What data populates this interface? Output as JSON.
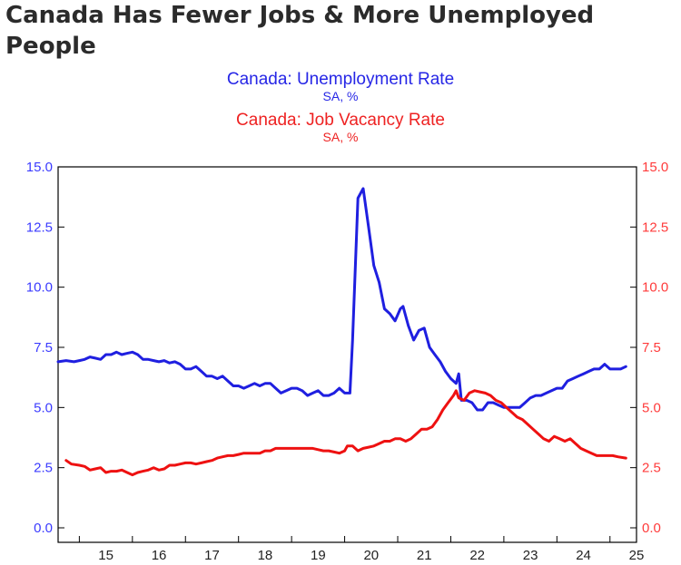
{
  "headline": "Canada Has Fewer Jobs & More Unemployed People",
  "chart_data": {
    "type": "line",
    "title": "",
    "x_tick_labels": [
      "15",
      "16",
      "17",
      "18",
      "19",
      "20",
      "21",
      "22",
      "23",
      "24",
      "25"
    ],
    "x_range": [
      2014.6,
      2025.5
    ],
    "y_left": {
      "range": [
        0,
        15
      ],
      "ticks": [
        "0.0",
        "2.5",
        "5.0",
        "7.5",
        "10.0",
        "12.5",
        "15.0"
      ],
      "color": "#3b3bff"
    },
    "y_right": {
      "range": [
        0,
        15
      ],
      "ticks": [
        "0.0",
        "2.5",
        "5.0",
        "7.5",
        "10.0",
        "12.5",
        "15.0"
      ],
      "color": "#ff3b3b"
    },
    "grid": false,
    "series": [
      {
        "name": "Canada: Unemployment Rate",
        "unit": "SA, %",
        "axis": "left",
        "color": "#1f1fe0",
        "points": [
          [
            2014.6,
            6.9
          ],
          [
            2014.75,
            6.95
          ],
          [
            2014.9,
            6.9
          ],
          [
            2015.0,
            6.95
          ],
          [
            2015.1,
            7.0
          ],
          [
            2015.2,
            7.1
          ],
          [
            2015.3,
            7.05
          ],
          [
            2015.4,
            7.0
          ],
          [
            2015.5,
            7.2
          ],
          [
            2015.6,
            7.2
          ],
          [
            2015.7,
            7.3
          ],
          [
            2015.8,
            7.2
          ],
          [
            2015.9,
            7.25
          ],
          [
            2016.0,
            7.3
          ],
          [
            2016.1,
            7.2
          ],
          [
            2016.2,
            7.0
          ],
          [
            2016.3,
            7.0
          ],
          [
            2016.4,
            6.95
          ],
          [
            2016.5,
            6.9
          ],
          [
            2016.6,
            6.95
          ],
          [
            2016.7,
            6.85
          ],
          [
            2016.8,
            6.9
          ],
          [
            2016.9,
            6.8
          ],
          [
            2017.0,
            6.6
          ],
          [
            2017.1,
            6.6
          ],
          [
            2017.2,
            6.7
          ],
          [
            2017.3,
            6.5
          ],
          [
            2017.4,
            6.3
          ],
          [
            2017.5,
            6.3
          ],
          [
            2017.6,
            6.2
          ],
          [
            2017.7,
            6.3
          ],
          [
            2017.8,
            6.1
          ],
          [
            2017.9,
            5.9
          ],
          [
            2018.0,
            5.9
          ],
          [
            2018.1,
            5.8
          ],
          [
            2018.2,
            5.9
          ],
          [
            2018.3,
            6.0
          ],
          [
            2018.4,
            5.9
          ],
          [
            2018.5,
            6.0
          ],
          [
            2018.6,
            6.0
          ],
          [
            2018.7,
            5.8
          ],
          [
            2018.8,
            5.6
          ],
          [
            2018.9,
            5.7
          ],
          [
            2019.0,
            5.8
          ],
          [
            2019.1,
            5.8
          ],
          [
            2019.2,
            5.7
          ],
          [
            2019.3,
            5.5
          ],
          [
            2019.4,
            5.6
          ],
          [
            2019.5,
            5.7
          ],
          [
            2019.6,
            5.5
          ],
          [
            2019.7,
            5.5
          ],
          [
            2019.8,
            5.6
          ],
          [
            2019.9,
            5.8
          ],
          [
            2020.0,
            5.6
          ],
          [
            2020.1,
            5.6
          ],
          [
            2020.15,
            7.8
          ],
          [
            2020.25,
            13.7
          ],
          [
            2020.35,
            14.1
          ],
          [
            2020.45,
            12.5
          ],
          [
            2020.55,
            10.9
          ],
          [
            2020.65,
            10.2
          ],
          [
            2020.75,
            9.1
          ],
          [
            2020.85,
            8.9
          ],
          [
            2020.95,
            8.6
          ],
          [
            2021.05,
            9.1
          ],
          [
            2021.1,
            9.2
          ],
          [
            2021.2,
            8.4
          ],
          [
            2021.3,
            7.8
          ],
          [
            2021.4,
            8.2
          ],
          [
            2021.5,
            8.3
          ],
          [
            2021.6,
            7.5
          ],
          [
            2021.7,
            7.2
          ],
          [
            2021.8,
            6.9
          ],
          [
            2021.9,
            6.5
          ],
          [
            2022.0,
            6.2
          ],
          [
            2022.1,
            6.0
          ],
          [
            2022.15,
            6.4
          ],
          [
            2022.2,
            5.3
          ],
          [
            2022.3,
            5.3
          ],
          [
            2022.4,
            5.2
          ],
          [
            2022.5,
            4.9
          ],
          [
            2022.6,
            4.9
          ],
          [
            2022.7,
            5.2
          ],
          [
            2022.8,
            5.2
          ],
          [
            2022.9,
            5.1
          ],
          [
            2023.0,
            5.0
          ],
          [
            2023.1,
            5.0
          ],
          [
            2023.2,
            5.0
          ],
          [
            2023.3,
            5.0
          ],
          [
            2023.4,
            5.2
          ],
          [
            2023.5,
            5.4
          ],
          [
            2023.6,
            5.5
          ],
          [
            2023.7,
            5.5
          ],
          [
            2023.8,
            5.6
          ],
          [
            2023.9,
            5.7
          ],
          [
            2024.0,
            5.8
          ],
          [
            2024.1,
            5.8
          ],
          [
            2024.2,
            6.1
          ],
          [
            2024.3,
            6.2
          ],
          [
            2024.4,
            6.3
          ],
          [
            2024.5,
            6.4
          ],
          [
            2024.6,
            6.5
          ],
          [
            2024.7,
            6.6
          ],
          [
            2024.8,
            6.6
          ],
          [
            2024.9,
            6.8
          ],
          [
            2025.0,
            6.6
          ],
          [
            2025.1,
            6.6
          ],
          [
            2025.2,
            6.6
          ],
          [
            2025.3,
            6.7
          ]
        ]
      },
      {
        "name": "Canada: Job Vacancy Rate",
        "unit": "SA, %",
        "axis": "right",
        "color": "#ee1111",
        "points": [
          [
            2014.75,
            2.8
          ],
          [
            2014.85,
            2.65
          ],
          [
            2015.0,
            2.6
          ],
          [
            2015.1,
            2.55
          ],
          [
            2015.2,
            2.4
          ],
          [
            2015.3,
            2.45
          ],
          [
            2015.4,
            2.5
          ],
          [
            2015.5,
            2.3
          ],
          [
            2015.6,
            2.35
          ],
          [
            2015.7,
            2.35
          ],
          [
            2015.8,
            2.4
          ],
          [
            2015.9,
            2.3
          ],
          [
            2016.0,
            2.2
          ],
          [
            2016.1,
            2.3
          ],
          [
            2016.2,
            2.35
          ],
          [
            2016.3,
            2.4
          ],
          [
            2016.4,
            2.5
          ],
          [
            2016.5,
            2.4
          ],
          [
            2016.6,
            2.45
          ],
          [
            2016.7,
            2.6
          ],
          [
            2016.8,
            2.6
          ],
          [
            2016.9,
            2.65
          ],
          [
            2017.0,
            2.7
          ],
          [
            2017.1,
            2.7
          ],
          [
            2017.2,
            2.65
          ],
          [
            2017.3,
            2.7
          ],
          [
            2017.4,
            2.75
          ],
          [
            2017.5,
            2.8
          ],
          [
            2017.6,
            2.9
          ],
          [
            2017.7,
            2.95
          ],
          [
            2017.8,
            3.0
          ],
          [
            2017.9,
            3.0
          ],
          [
            2018.0,
            3.05
          ],
          [
            2018.1,
            3.1
          ],
          [
            2018.2,
            3.1
          ],
          [
            2018.3,
            3.1
          ],
          [
            2018.4,
            3.1
          ],
          [
            2018.5,
            3.2
          ],
          [
            2018.6,
            3.2
          ],
          [
            2018.7,
            3.3
          ],
          [
            2018.8,
            3.3
          ],
          [
            2018.9,
            3.3
          ],
          [
            2019.0,
            3.3
          ],
          [
            2019.1,
            3.3
          ],
          [
            2019.2,
            3.3
          ],
          [
            2019.3,
            3.3
          ],
          [
            2019.4,
            3.3
          ],
          [
            2019.5,
            3.25
          ],
          [
            2019.6,
            3.2
          ],
          [
            2019.7,
            3.2
          ],
          [
            2019.8,
            3.15
          ],
          [
            2019.9,
            3.1
          ],
          [
            2020.0,
            3.2
          ],
          [
            2020.05,
            3.4
          ],
          [
            2020.15,
            3.4
          ],
          [
            2020.25,
            3.2
          ],
          [
            2020.35,
            3.3
          ],
          [
            2020.45,
            3.35
          ],
          [
            2020.55,
            3.4
          ],
          [
            2020.65,
            3.5
          ],
          [
            2020.75,
            3.6
          ],
          [
            2020.85,
            3.6
          ],
          [
            2020.95,
            3.7
          ],
          [
            2021.05,
            3.7
          ],
          [
            2021.15,
            3.6
          ],
          [
            2021.25,
            3.7
          ],
          [
            2021.35,
            3.9
          ],
          [
            2021.45,
            4.1
          ],
          [
            2021.55,
            4.1
          ],
          [
            2021.65,
            4.2
          ],
          [
            2021.75,
            4.5
          ],
          [
            2021.85,
            4.9
          ],
          [
            2021.95,
            5.2
          ],
          [
            2022.05,
            5.5
          ],
          [
            2022.1,
            5.7
          ],
          [
            2022.15,
            5.4
          ],
          [
            2022.25,
            5.3
          ],
          [
            2022.35,
            5.6
          ],
          [
            2022.45,
            5.7
          ],
          [
            2022.55,
            5.65
          ],
          [
            2022.65,
            5.6
          ],
          [
            2022.75,
            5.5
          ],
          [
            2022.85,
            5.3
          ],
          [
            2022.95,
            5.2
          ],
          [
            2023.05,
            5.0
          ],
          [
            2023.15,
            4.8
          ],
          [
            2023.25,
            4.6
          ],
          [
            2023.35,
            4.5
          ],
          [
            2023.45,
            4.3
          ],
          [
            2023.55,
            4.1
          ],
          [
            2023.65,
            3.9
          ],
          [
            2023.75,
            3.7
          ],
          [
            2023.85,
            3.6
          ],
          [
            2023.95,
            3.8
          ],
          [
            2024.05,
            3.7
          ],
          [
            2024.15,
            3.6
          ],
          [
            2024.25,
            3.7
          ],
          [
            2024.35,
            3.5
          ],
          [
            2024.45,
            3.3
          ],
          [
            2024.55,
            3.2
          ],
          [
            2024.65,
            3.1
          ],
          [
            2024.75,
            3.0
          ],
          [
            2024.85,
            3.0
          ],
          [
            2024.95,
            3.0
          ],
          [
            2025.05,
            3.0
          ],
          [
            2025.15,
            2.95
          ],
          [
            2025.3,
            2.9
          ]
        ]
      }
    ]
  }
}
